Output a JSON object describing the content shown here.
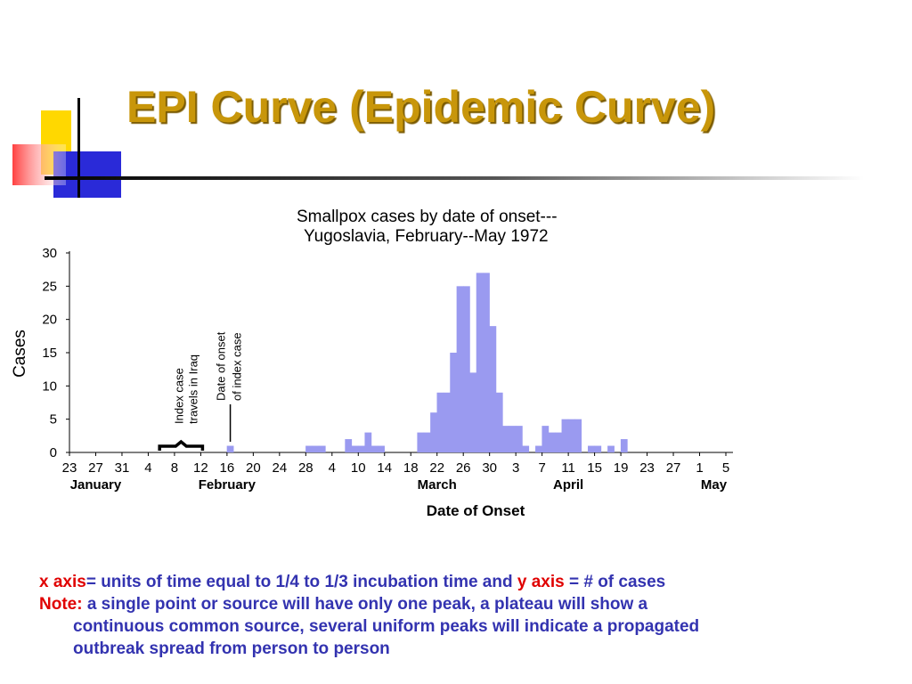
{
  "slide": {
    "title": "EPI Curve (Epidemic Curve)",
    "colors": {
      "title": "#c8960a",
      "note_text": "#3333b0",
      "note_key": "#e00000",
      "bar": "#9a9af0"
    }
  },
  "notes": {
    "x_axis_key": "x axis",
    "x_axis_text": "= units of time equal to  1/4 to 1/3 incubation time and ",
    "y_axis_key": "y axis",
    "y_axis_text": " = # of cases",
    "note_key": "Note:",
    "note_text": "  a single point or source will have only one peak, a plateau will show a",
    "note_line2": "continuous common source, several uniform peaks will indicate a propagated",
    "note_line3": "outbreak spread from person to person"
  },
  "chart_data": {
    "type": "bar",
    "title": "Smallpox cases by date of onset---",
    "subtitle": "Yugoslavia, February--May 1972",
    "xlabel": "Date of Onset",
    "ylabel": "Cases",
    "ylim": [
      0,
      30
    ],
    "yticks": [
      0,
      5,
      10,
      15,
      20,
      25,
      30
    ],
    "xticks": [
      "23",
      "27",
      "31",
      "4",
      "8",
      "12",
      "16",
      "20",
      "24",
      "28",
      "4",
      "10",
      "14",
      "18",
      "22",
      "26",
      "30",
      "3",
      "7",
      "11",
      "15",
      "19",
      "23",
      "27",
      "1",
      "5"
    ],
    "month_labels": [
      {
        "label": "January",
        "tick": "27"
      },
      {
        "label": "February",
        "tick": "16"
      },
      {
        "label": "March",
        "tick": "22"
      },
      {
        "label": "April",
        "tick": "11"
      },
      {
        "label": "May",
        "tick": "1"
      }
    ],
    "bars": [
      {
        "date": "1972-02-16",
        "cases": 1
      },
      {
        "date": "1972-02-28",
        "cases": 1
      },
      {
        "date": "1972-02-29",
        "cases": 1
      },
      {
        "date": "1972-03-01",
        "cases": 1
      },
      {
        "date": "1972-03-05",
        "cases": 2
      },
      {
        "date": "1972-03-06",
        "cases": 1
      },
      {
        "date": "1972-03-07",
        "cases": 1
      },
      {
        "date": "1972-03-08",
        "cases": 3
      },
      {
        "date": "1972-03-09",
        "cases": 1
      },
      {
        "date": "1972-03-10",
        "cases": 1
      },
      {
        "date": "1972-03-16",
        "cases": 3
      },
      {
        "date": "1972-03-17",
        "cases": 3
      },
      {
        "date": "1972-03-18",
        "cases": 6
      },
      {
        "date": "1972-03-19",
        "cases": 9
      },
      {
        "date": "1972-03-20",
        "cases": 9
      },
      {
        "date": "1972-03-21",
        "cases": 15
      },
      {
        "date": "1972-03-22",
        "cases": 25
      },
      {
        "date": "1972-03-23",
        "cases": 25
      },
      {
        "date": "1972-03-24",
        "cases": 12
      },
      {
        "date": "1972-03-25",
        "cases": 27
      },
      {
        "date": "1972-03-26",
        "cases": 27
      },
      {
        "date": "1972-03-27",
        "cases": 19
      },
      {
        "date": "1972-03-28",
        "cases": 9
      },
      {
        "date": "1972-03-29",
        "cases": 4
      },
      {
        "date": "1972-03-30",
        "cases": 4
      },
      {
        "date": "1972-03-31",
        "cases": 4
      },
      {
        "date": "1972-04-01",
        "cases": 1
      },
      {
        "date": "1972-04-03",
        "cases": 1
      },
      {
        "date": "1972-04-04",
        "cases": 4
      },
      {
        "date": "1972-04-05",
        "cases": 3
      },
      {
        "date": "1972-04-06",
        "cases": 3
      },
      {
        "date": "1972-04-07",
        "cases": 5
      },
      {
        "date": "1972-04-08",
        "cases": 5
      },
      {
        "date": "1972-04-09",
        "cases": 5
      },
      {
        "date": "1972-04-11",
        "cases": 1
      },
      {
        "date": "1972-04-12",
        "cases": 1
      },
      {
        "date": "1972-04-14",
        "cases": 1
      },
      {
        "date": "1972-04-16",
        "cases": 2
      }
    ],
    "annotations": [
      {
        "id": "index-travel",
        "lines": [
          "Index case",
          "travels in Iraq"
        ],
        "start": "1972-02-06",
        "end": "1972-02-12"
      },
      {
        "id": "index-onset",
        "lines": [
          "Date of onset",
          "of index case"
        ],
        "date": "1972-02-16"
      }
    ]
  }
}
